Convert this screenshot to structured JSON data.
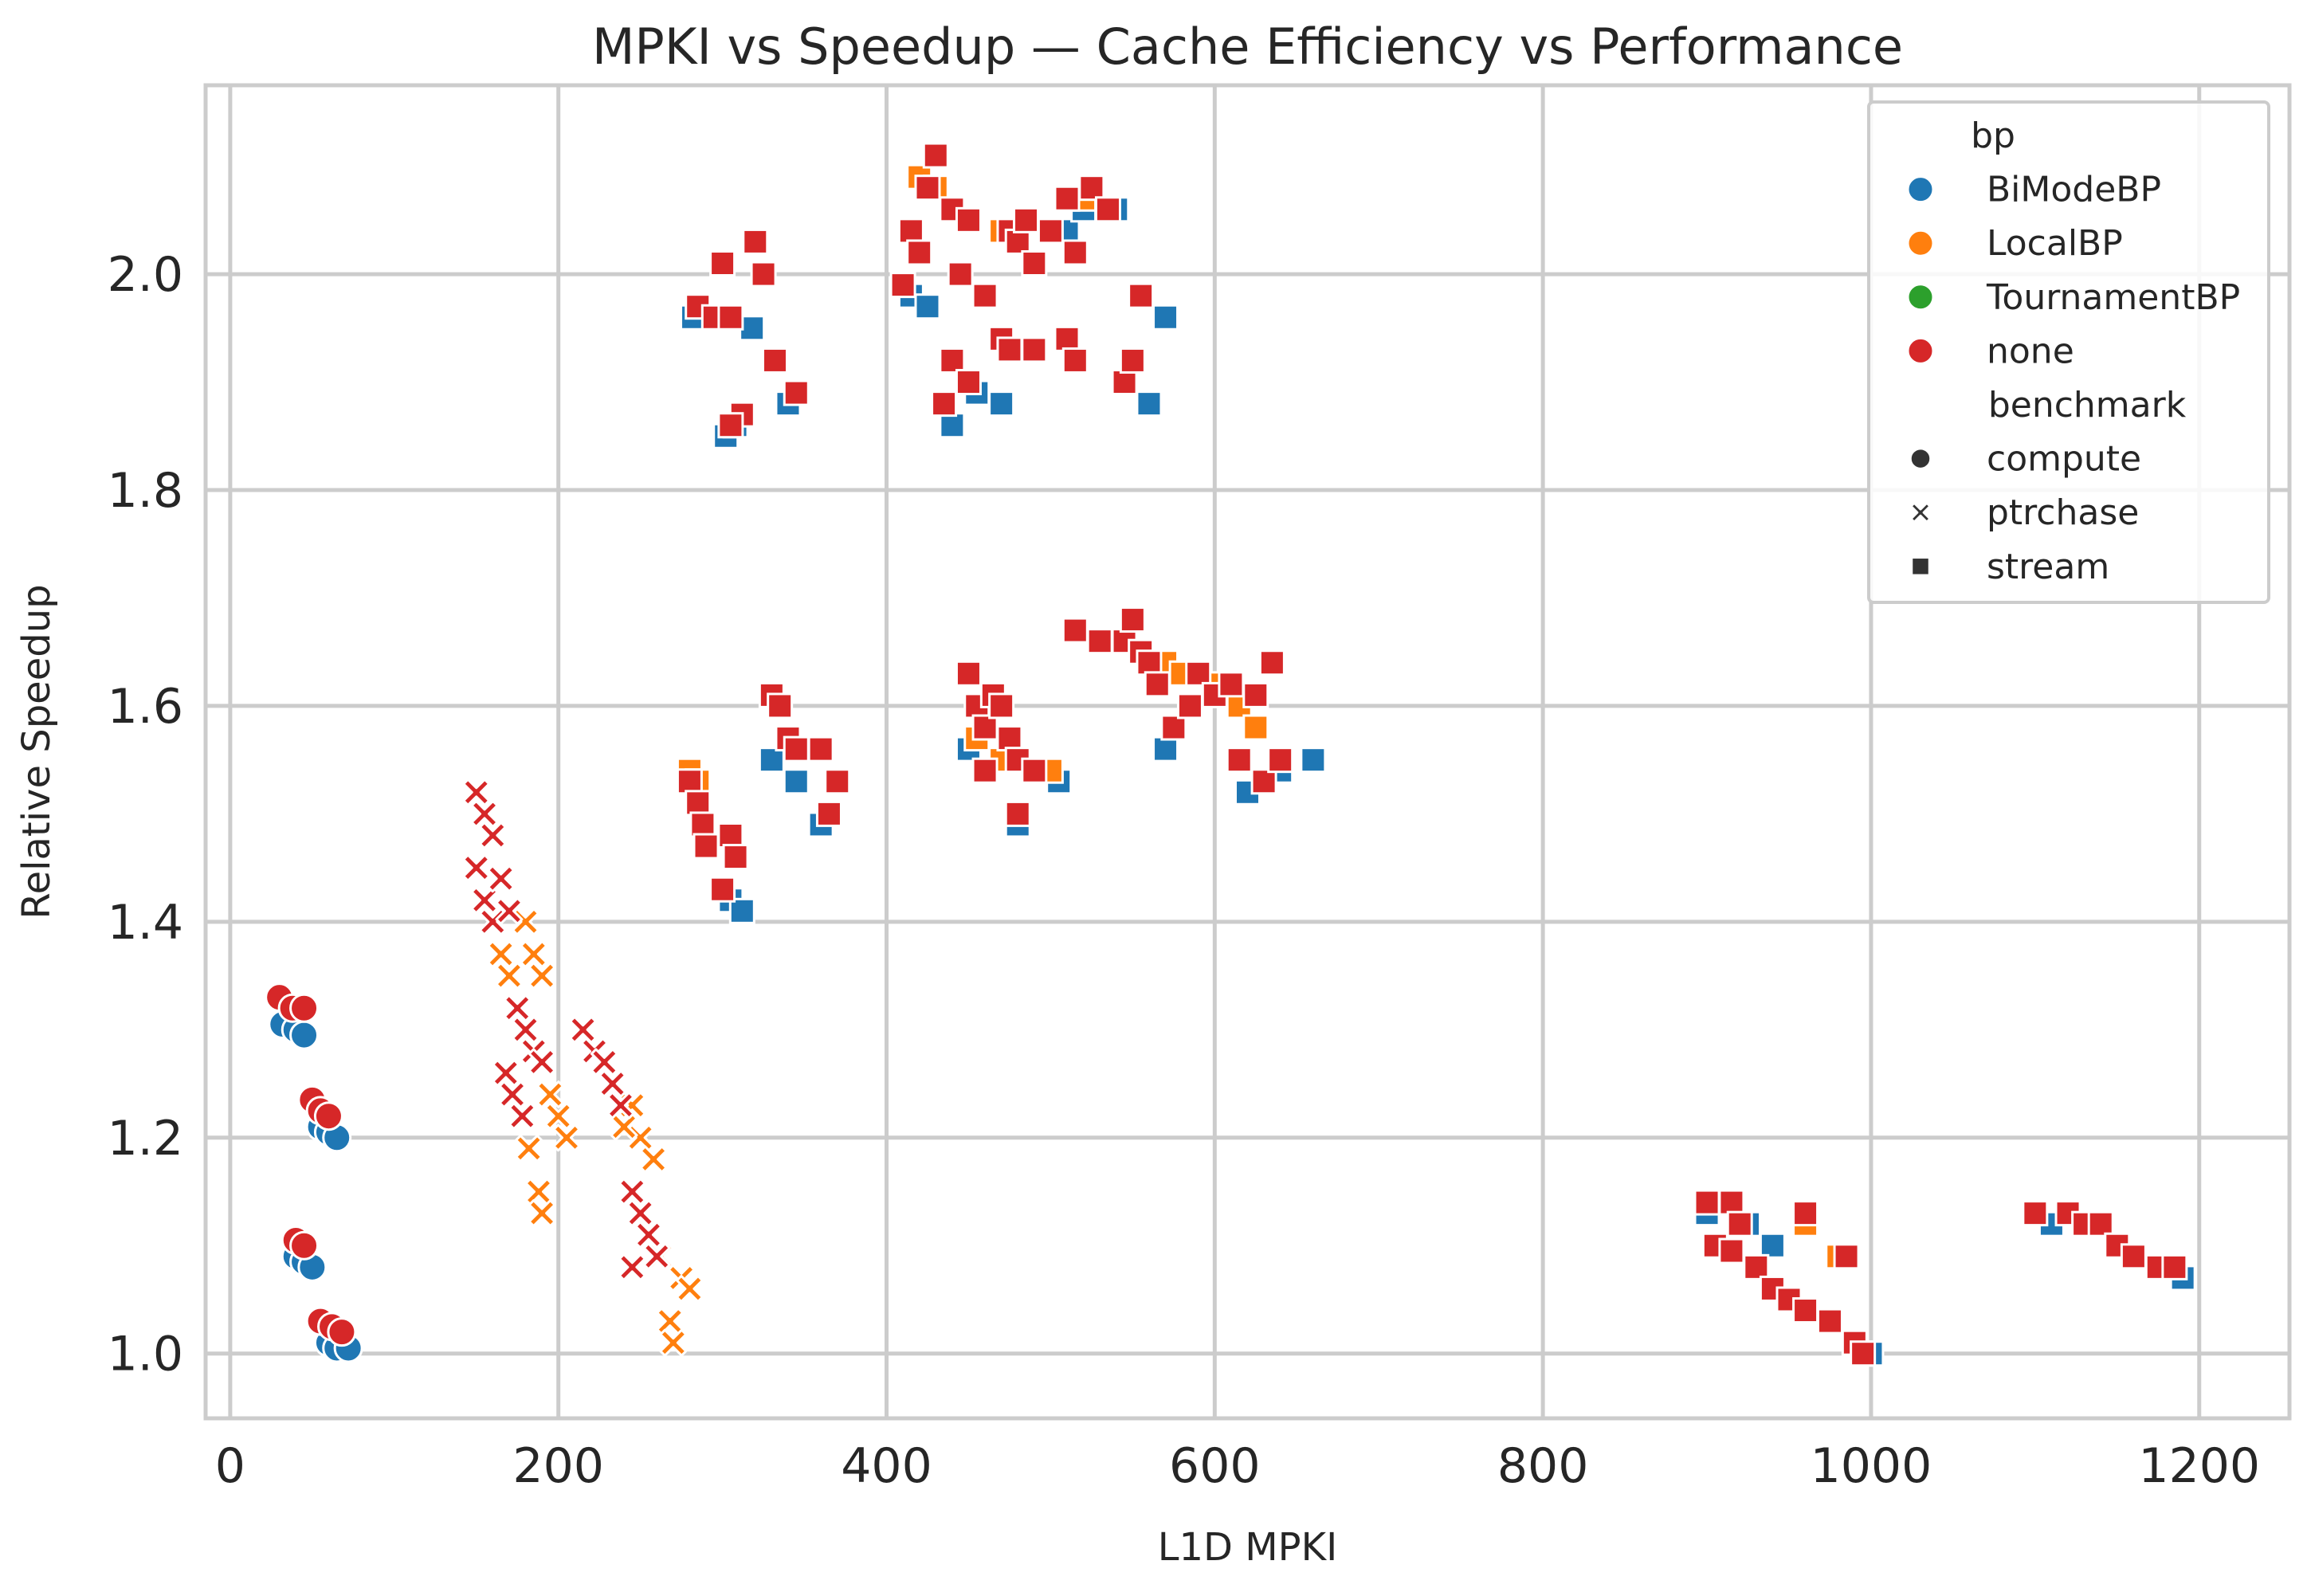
{
  "chart_data": {
    "type": "scatter",
    "title": "MPKI vs Speedup — Cache Efficiency vs Performance",
    "xlabel": "L1D MPKI",
    "ylabel": "Relative Speedup",
    "xlim": [
      -15,
      1255
    ],
    "ylim": [
      0.94,
      2.175
    ],
    "xticks": [
      0,
      200,
      400,
      600,
      800,
      1000,
      1200
    ],
    "yticks": [
      1.0,
      1.2,
      1.4,
      1.6,
      1.8,
      2.0
    ],
    "grid": true,
    "legend_position": "top-right",
    "legend": {
      "hue_title": "bp",
      "hue_entries": [
        {
          "name": "BiModeBP",
          "color": "#1f77b4"
        },
        {
          "name": "LocalBP",
          "color": "#ff7f0e"
        },
        {
          "name": "TournamentBP",
          "color": "#2ca02c"
        },
        {
          "name": "none",
          "color": "#d62728"
        }
      ],
      "style_title": "benchmark",
      "style_entries": [
        {
          "name": "compute",
          "marker": "circle"
        },
        {
          "name": "ptrchase",
          "marker": "x"
        },
        {
          "name": "stream",
          "marker": "square"
        }
      ]
    },
    "series": [
      {
        "bp": "BiModeBP",
        "benchmark": "compute",
        "color": "#1f77b4",
        "marker": "circle",
        "points": [
          [
            32,
            1.305
          ],
          [
            40,
            1.3
          ],
          [
            45,
            1.295
          ],
          [
            55,
            1.21
          ],
          [
            60,
            1.205
          ],
          [
            65,
            1.2
          ],
          [
            40,
            1.09
          ],
          [
            45,
            1.085
          ],
          [
            50,
            1.08
          ],
          [
            60,
            1.01
          ],
          [
            65,
            1.005
          ],
          [
            72,
            1.005
          ]
        ]
      },
      {
        "bp": "BiModeBP",
        "benchmark": "stream",
        "color": "#1f77b4",
        "marker": "square",
        "points": [
          [
            282,
            1.96
          ],
          [
            302,
            1.85
          ],
          [
            308,
            1.86
          ],
          [
            318,
            1.95
          ],
          [
            340,
            1.88
          ],
          [
            415,
            1.98
          ],
          [
            425,
            1.97
          ],
          [
            440,
            1.86
          ],
          [
            455,
            1.89
          ],
          [
            470,
            1.88
          ],
          [
            510,
            2.04
          ],
          [
            520,
            2.06
          ],
          [
            540,
            2.06
          ],
          [
            560,
            1.88
          ],
          [
            570,
            1.96
          ],
          [
            305,
            1.42
          ],
          [
            312,
            1.41
          ],
          [
            330,
            1.55
          ],
          [
            345,
            1.53
          ],
          [
            360,
            1.49
          ],
          [
            450,
            1.56
          ],
          [
            480,
            1.49
          ],
          [
            505,
            1.53
          ],
          [
            570,
            1.56
          ],
          [
            620,
            1.52
          ],
          [
            640,
            1.54
          ],
          [
            660,
            1.55
          ],
          [
            900,
            1.13
          ],
          [
            925,
            1.12
          ],
          [
            940,
            1.1
          ],
          [
            1000,
            1.0
          ],
          [
            1110,
            1.12
          ],
          [
            1150,
            1.1
          ],
          [
            1190,
            1.07
          ]
        ]
      },
      {
        "bp": "LocalBP",
        "benchmark": "ptrchase",
        "color": "#ff7f0e",
        "marker": "x",
        "points": [
          [
            165,
            1.37
          ],
          [
            170,
            1.35
          ],
          [
            180,
            1.4
          ],
          [
            185,
            1.37
          ],
          [
            190,
            1.35
          ],
          [
            182,
            1.19
          ],
          [
            188,
            1.15
          ],
          [
            195,
            1.24
          ],
          [
            200,
            1.22
          ],
          [
            205,
            1.2
          ],
          [
            245,
            1.23
          ],
          [
            250,
            1.2
          ],
          [
            258,
            1.18
          ],
          [
            262,
            1.09
          ],
          [
            268,
            1.03
          ],
          [
            270,
            1.01
          ],
          [
            275,
            1.07
          ],
          [
            280,
            1.06
          ],
          [
            190,
            1.13
          ],
          [
            240,
            1.21
          ]
        ]
      },
      {
        "bp": "LocalBP",
        "benchmark": "stream",
        "color": "#ff7f0e",
        "marker": "square",
        "points": [
          [
            420,
            2.09
          ],
          [
            430,
            2.08
          ],
          [
            470,
            2.04
          ],
          [
            520,
            2.07
          ],
          [
            280,
            1.54
          ],
          [
            285,
            1.53
          ],
          [
            455,
            1.57
          ],
          [
            470,
            1.55
          ],
          [
            500,
            1.54
          ],
          [
            570,
            1.64
          ],
          [
            580,
            1.63
          ],
          [
            600,
            1.62
          ],
          [
            615,
            1.6
          ],
          [
            625,
            1.58
          ],
          [
            960,
            1.12
          ],
          [
            980,
            1.09
          ]
        ]
      },
      {
        "bp": "none",
        "benchmark": "compute",
        "color": "#d62728",
        "marker": "circle",
        "points": [
          [
            30,
            1.33
          ],
          [
            38,
            1.32
          ],
          [
            45,
            1.32
          ],
          [
            50,
            1.235
          ],
          [
            55,
            1.225
          ],
          [
            60,
            1.22
          ],
          [
            40,
            1.105
          ],
          [
            45,
            1.1
          ],
          [
            55,
            1.03
          ],
          [
            62,
            1.025
          ],
          [
            68,
            1.02
          ]
        ]
      },
      {
        "bp": "none",
        "benchmark": "ptrchase",
        "color": "#d62728",
        "marker": "x",
        "points": [
          [
            150,
            1.52
          ],
          [
            155,
            1.5
          ],
          [
            160,
            1.48
          ],
          [
            150,
            1.45
          ],
          [
            155,
            1.42
          ],
          [
            160,
            1.4
          ],
          [
            165,
            1.44
          ],
          [
            170,
            1.41
          ],
          [
            175,
            1.32
          ],
          [
            180,
            1.3
          ],
          [
            185,
            1.28
          ],
          [
            190,
            1.27
          ],
          [
            168,
            1.26
          ],
          [
            172,
            1.24
          ],
          [
            178,
            1.22
          ],
          [
            215,
            1.3
          ],
          [
            222,
            1.28
          ],
          [
            228,
            1.27
          ],
          [
            233,
            1.25
          ],
          [
            238,
            1.23
          ],
          [
            245,
            1.15
          ],
          [
            250,
            1.13
          ],
          [
            255,
            1.11
          ],
          [
            260,
            1.09
          ],
          [
            245,
            1.08
          ]
        ]
      },
      {
        "bp": "none",
        "benchmark": "stream",
        "color": "#d62728",
        "marker": "square",
        "points": [
          [
            285,
            1.97
          ],
          [
            295,
            1.96
          ],
          [
            300,
            2.01
          ],
          [
            305,
            1.96
          ],
          [
            320,
            2.03
          ],
          [
            325,
            2.0
          ],
          [
            312,
            1.87
          ],
          [
            305,
            1.86
          ],
          [
            332,
            1.92
          ],
          [
            345,
            1.89
          ],
          [
            410,
            1.99
          ],
          [
            415,
            2.04
          ],
          [
            420,
            2.02
          ],
          [
            425,
            2.08
          ],
          [
            430,
            2.11
          ],
          [
            440,
            2.06
          ],
          [
            445,
            2.0
          ],
          [
            450,
            2.05
          ],
          [
            460,
            1.98
          ],
          [
            470,
            1.94
          ],
          [
            475,
            2.04
          ],
          [
            480,
            2.03
          ],
          [
            485,
            2.05
          ],
          [
            490,
            2.01
          ],
          [
            500,
            2.04
          ],
          [
            510,
            2.07
          ],
          [
            515,
            2.02
          ],
          [
            525,
            2.08
          ],
          [
            535,
            2.06
          ],
          [
            440,
            1.92
          ],
          [
            450,
            1.9
          ],
          [
            435,
            1.88
          ],
          [
            475,
            1.93
          ],
          [
            490,
            1.93
          ],
          [
            510,
            1.94
          ],
          [
            515,
            1.92
          ],
          [
            545,
            1.9
          ],
          [
            550,
            1.92
          ],
          [
            555,
            1.98
          ],
          [
            280,
            1.53
          ],
          [
            285,
            1.51
          ],
          [
            288,
            1.49
          ],
          [
            290,
            1.47
          ],
          [
            300,
            1.43
          ],
          [
            305,
            1.48
          ],
          [
            308,
            1.46
          ],
          [
            330,
            1.61
          ],
          [
            335,
            1.6
          ],
          [
            340,
            1.57
          ],
          [
            345,
            1.56
          ],
          [
            360,
            1.56
          ],
          [
            365,
            1.5
          ],
          [
            370,
            1.53
          ],
          [
            450,
            1.63
          ],
          [
            455,
            1.6
          ],
          [
            460,
            1.58
          ],
          [
            465,
            1.61
          ],
          [
            470,
            1.6
          ],
          [
            475,
            1.57
          ],
          [
            480,
            1.55
          ],
          [
            490,
            1.54
          ],
          [
            460,
            1.54
          ],
          [
            480,
            1.5
          ],
          [
            515,
            1.67
          ],
          [
            530,
            1.66
          ],
          [
            545,
            1.66
          ],
          [
            550,
            1.68
          ],
          [
            555,
            1.65
          ],
          [
            560,
            1.64
          ],
          [
            565,
            1.62
          ],
          [
            575,
            1.58
          ],
          [
            585,
            1.6
          ],
          [
            590,
            1.63
          ],
          [
            600,
            1.61
          ],
          [
            610,
            1.62
          ],
          [
            615,
            1.55
          ],
          [
            625,
            1.61
          ],
          [
            630,
            1.53
          ],
          [
            635,
            1.64
          ],
          [
            640,
            1.55
          ],
          [
            900,
            1.14
          ],
          [
            915,
            1.14
          ],
          [
            920,
            1.12
          ],
          [
            905,
            1.1
          ],
          [
            915,
            1.095
          ],
          [
            930,
            1.08
          ],
          [
            940,
            1.06
          ],
          [
            950,
            1.05
          ],
          [
            960,
            1.04
          ],
          [
            975,
            1.03
          ],
          [
            985,
            1.09
          ],
          [
            990,
            1.01
          ],
          [
            995,
            1.0
          ],
          [
            960,
            1.13
          ],
          [
            1100,
            1.13
          ],
          [
            1120,
            1.13
          ],
          [
            1130,
            1.12
          ],
          [
            1140,
            1.12
          ],
          [
            1150,
            1.1
          ],
          [
            1160,
            1.09
          ],
          [
            1175,
            1.08
          ],
          [
            1185,
            1.08
          ]
        ]
      }
    ]
  }
}
